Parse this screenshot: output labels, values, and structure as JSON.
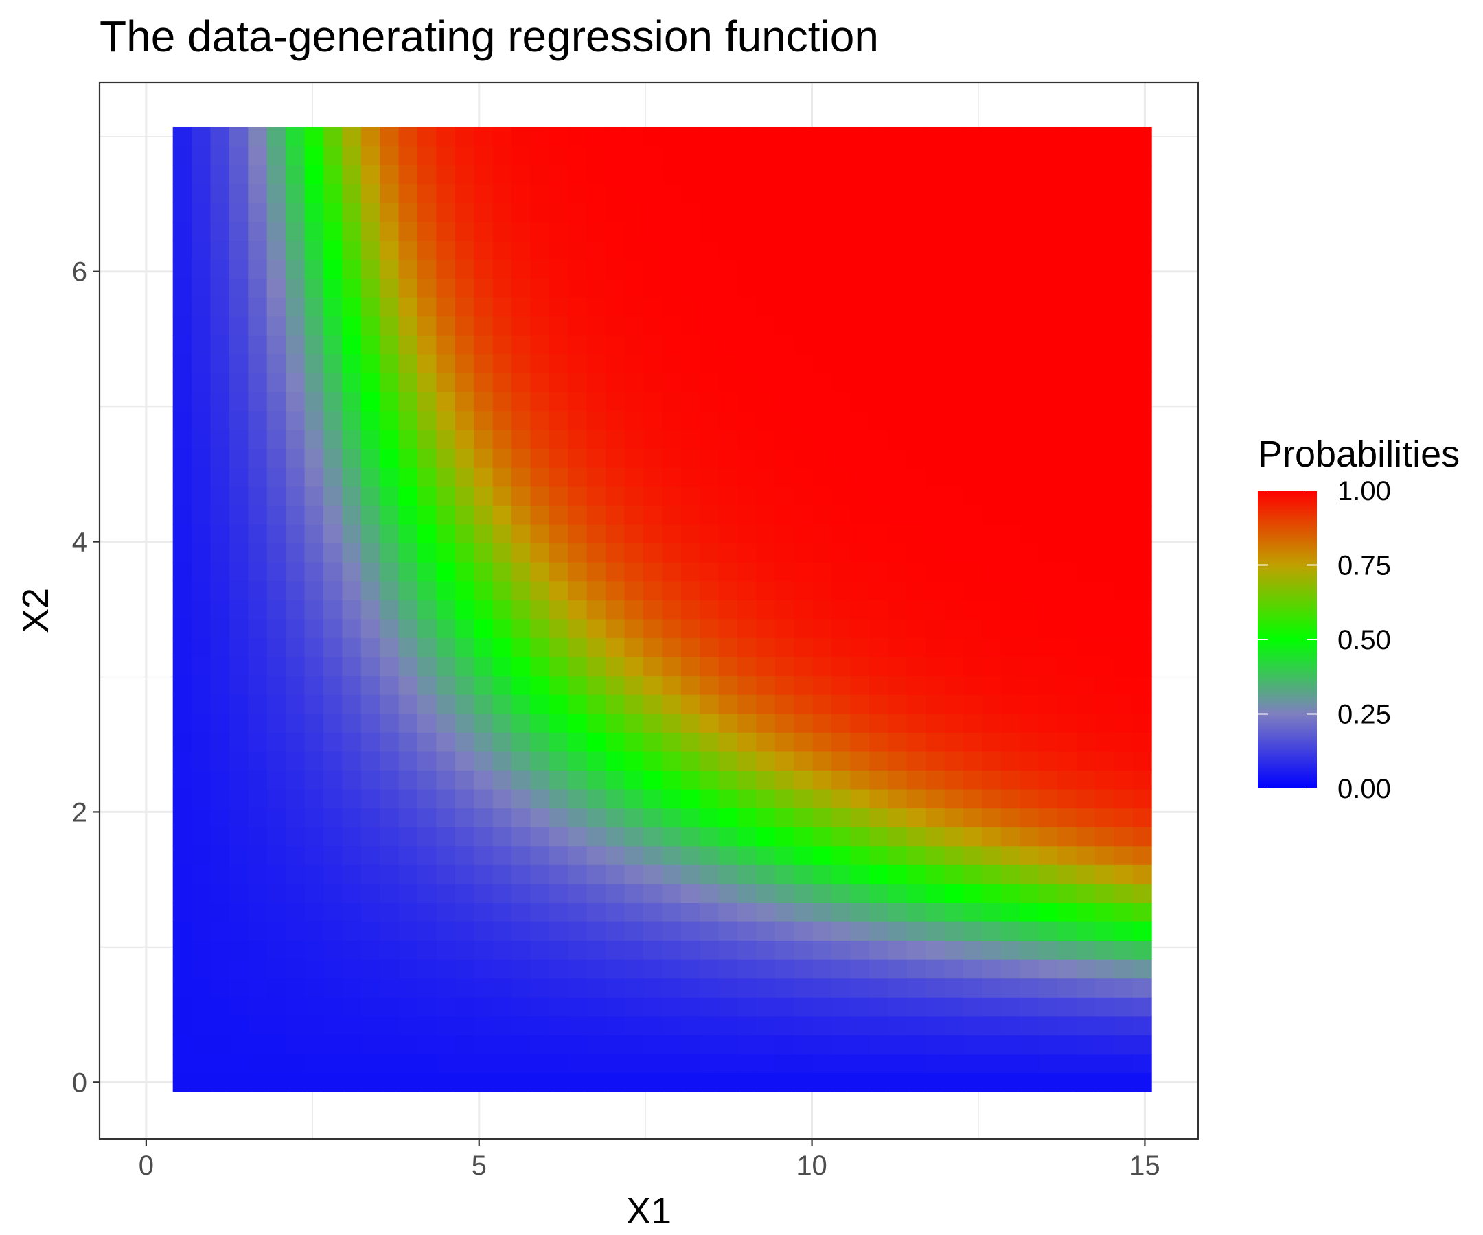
{
  "chart_data": {
    "type": "heatmap",
    "title": "The data-generating regression function",
    "xlabel": "X1",
    "ylabel": "X2",
    "xlim": [
      -0.7,
      15.8
    ],
    "ylim": [
      -0.42,
      7.4
    ],
    "xticks": [
      0,
      5,
      10,
      15
    ],
    "xtick_labels": [
      "0",
      "5",
      "10",
      "15"
    ],
    "yticks": [
      0,
      2,
      4,
      6
    ],
    "ytick_labels": [
      "0",
      "2",
      "4",
      "6"
    ],
    "grid": true,
    "x_range": [
      0.4,
      15.1
    ],
    "y_range": [
      -0.07,
      7.07
    ],
    "nx": 52,
    "ny": 51,
    "function": "probability increases with X1*X2; 0.5 contour approx X1*X2 = 17",
    "legend": {
      "title": "Probabilities",
      "position": "right",
      "breaks": [
        0,
        0.25,
        0.5,
        0.75,
        1
      ],
      "labels": [
        "0.00",
        "0.25",
        "0.50",
        "0.75",
        "1.00"
      ]
    },
    "colorscale": [
      {
        "value": 0.0,
        "color": "#0000ff"
      },
      {
        "value": 0.25,
        "color": "#7f7fc0"
      },
      {
        "value": 0.5,
        "color": "#00ff00"
      },
      {
        "value": 0.75,
        "color": "#c0a000"
      },
      {
        "value": 1.0,
        "color": "#ff0000"
      }
    ]
  }
}
